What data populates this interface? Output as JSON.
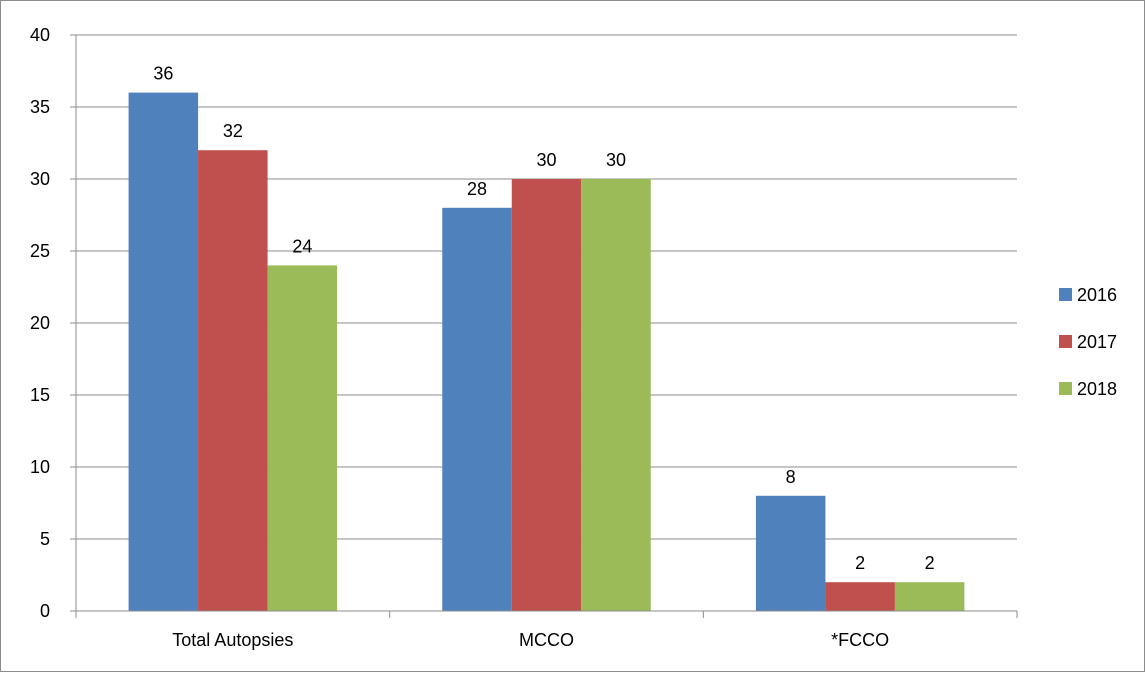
{
  "chart_data": {
    "type": "bar",
    "title": "",
    "xlabel": "",
    "ylabel": "",
    "categories": [
      "Total Autopsies",
      "MCCO",
      "*FCCO"
    ],
    "series": [
      {
        "name": "2016",
        "values": [
          36,
          28,
          8
        ],
        "color": "#4f81bd"
      },
      {
        "name": "2017",
        "values": [
          32,
          30,
          2
        ],
        "color": "#c0504d"
      },
      {
        "name": "2018",
        "values": [
          24,
          30,
          2
        ],
        "color": "#9bbb59"
      }
    ],
    "ylim": [
      0,
      40
    ],
    "yticks": [
      0,
      5,
      10,
      15,
      20,
      25,
      30,
      35,
      40
    ],
    "data_labels": true,
    "grid": true,
    "legend": "right"
  }
}
